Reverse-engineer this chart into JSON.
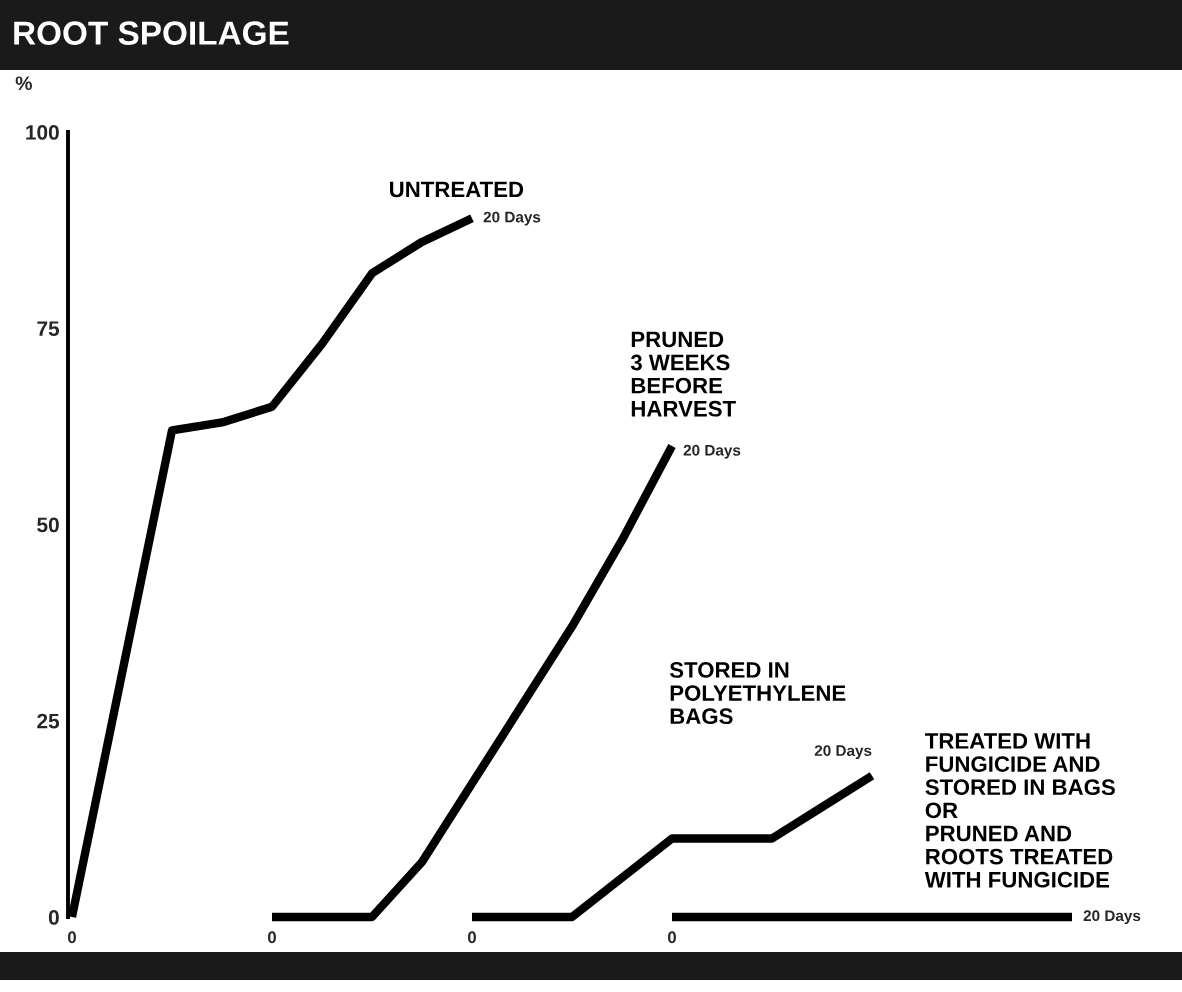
{
  "chart_data": {
    "type": "line",
    "title": "ROOT SPOILAGE",
    "ylabel": "%",
    "ylim": [
      0,
      100
    ],
    "yticks": [
      0,
      25,
      50,
      75,
      100
    ],
    "categories": [
      "0",
      null,
      null,
      null,
      "0",
      null,
      null,
      null,
      "0",
      null,
      null,
      null,
      "0",
      null,
      null,
      null,
      null,
      null,
      null,
      null,
      null
    ],
    "series": [
      {
        "name": "UNTREATED",
        "color": "#000000",
        "values": [
          0,
          31,
          62,
          63,
          65,
          73,
          82,
          86,
          89,
          null,
          null,
          null,
          null,
          null,
          null,
          null,
          null,
          null,
          null,
          null,
          null
        ]
      },
      {
        "name": "PRUNED\n3 WEEKS\nBEFORE\nHARVEST",
        "color": "#000000",
        "values": [
          null,
          null,
          null,
          null,
          0,
          0,
          0,
          7,
          17,
          27,
          37,
          48,
          60,
          null,
          null,
          null,
          null,
          null,
          null,
          null,
          null
        ]
      },
      {
        "name": "STORED IN\nPOLYETHYLENE\nBAGS",
        "color": "#000000",
        "values": [
          null,
          null,
          null,
          null,
          null,
          null,
          null,
          null,
          0,
          0,
          0,
          5,
          10,
          10,
          10,
          14,
          18,
          null,
          null,
          null,
          null
        ]
      },
      {
        "name": "TREATED WITH\nFUNGICIDE AND\nSTORED IN BAGS\nOR\nPRUNED AND\nROOTS TREATED\nWITH FUNGICIDE",
        "color": "#000000",
        "values": [
          null,
          null,
          null,
          null,
          null,
          null,
          null,
          null,
          null,
          null,
          null,
          null,
          0,
          0,
          0,
          0,
          0,
          0,
          0,
          0,
          0
        ]
      }
    ],
    "annotations": [
      "20 Days",
      "20 Days",
      "20 Days",
      "20 Days"
    ]
  }
}
